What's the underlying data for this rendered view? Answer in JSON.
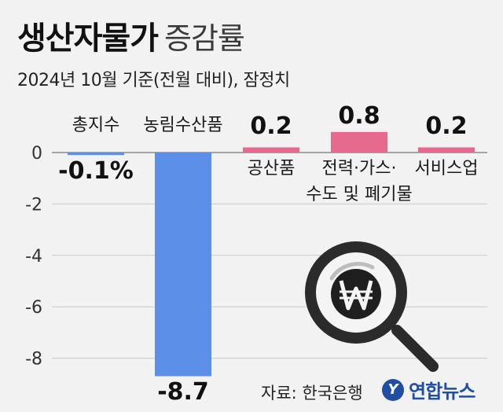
{
  "title": {
    "main": "생산자물가",
    "sub": "증감률"
  },
  "subtitle": "2024년 10월 기준(전월 대비), 잠정치",
  "source": "자료: 한국은행",
  "logo": {
    "mark": "Y",
    "text": "연합뉴스",
    "color": "#1f4ea3"
  },
  "icon": "magnifier-won-icon",
  "colors": {
    "negative": "#5b8fe8",
    "positive": "#e56a8e",
    "magnifier": "#2b2b2b"
  },
  "chart_data": {
    "type": "bar",
    "categories": [
      "총지수",
      "농림수산품",
      "공산품",
      "전력·가스·\n수도 및 폐기물",
      "서비스업"
    ],
    "values": [
      -0.1,
      -8.7,
      0.2,
      0.8,
      0.2
    ],
    "value_labels": [
      "-0.1%",
      "-8.7",
      "0.2",
      "0.8",
      "0.2"
    ],
    "y_ticks": [
      "0",
      "-2",
      "-4",
      "-6",
      "-8"
    ],
    "ylim": [
      -8.7,
      0.8
    ],
    "grid": true
  }
}
